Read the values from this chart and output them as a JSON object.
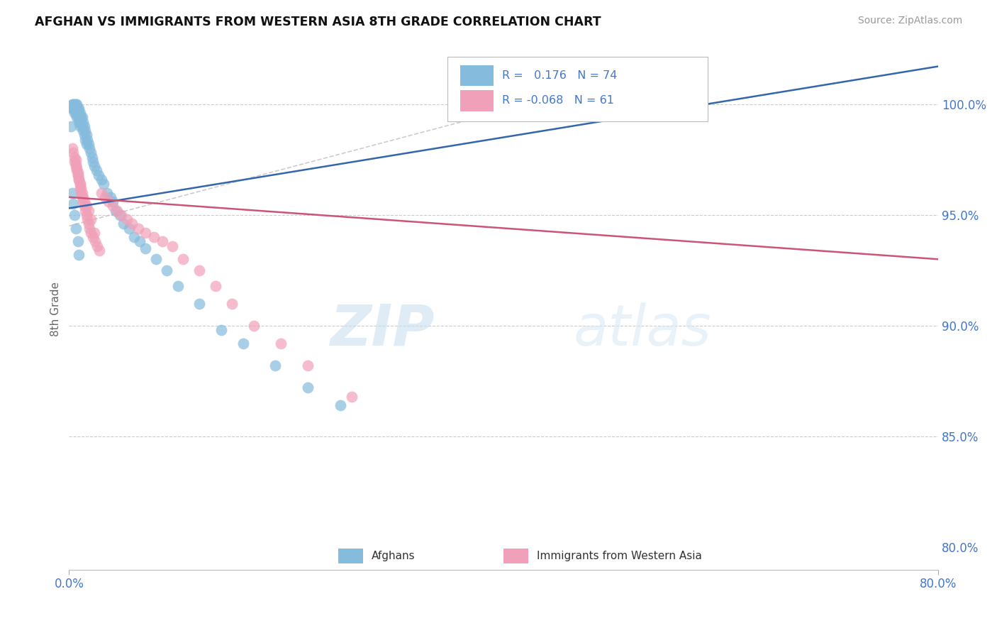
{
  "title": "AFGHAN VS IMMIGRANTS FROM WESTERN ASIA 8TH GRADE CORRELATION CHART",
  "source_text": "Source: ZipAtlas.com",
  "ylabel": "8th Grade",
  "xlim": [
    0.0,
    0.8
  ],
  "ylim": [
    0.79,
    1.025
  ],
  "blue_color": "#85bbdd",
  "pink_color": "#f0a0b8",
  "blue_line_color": "#3366aa",
  "pink_line_color": "#cc5577",
  "dashed_line_color": "#c0c0c0",
  "grid_color": "#cccccc",
  "axis_color": "#4477cc",
  "legend_R1": "0.176",
  "legend_N1": "74",
  "legend_R2": "-0.068",
  "legend_N2": "61",
  "legend_label1": "Afghans",
  "legend_label2": "Immigrants from Western Asia",
  "watermark_zip": "ZIP",
  "watermark_atlas": "atlas",
  "blue_scatter_x": [
    0.002,
    0.003,
    0.003,
    0.004,
    0.004,
    0.005,
    0.005,
    0.005,
    0.006,
    0.006,
    0.006,
    0.007,
    0.007,
    0.007,
    0.007,
    0.008,
    0.008,
    0.008,
    0.009,
    0.009,
    0.009,
    0.01,
    0.01,
    0.01,
    0.01,
    0.011,
    0.011,
    0.012,
    0.012,
    0.013,
    0.013,
    0.014,
    0.014,
    0.015,
    0.015,
    0.016,
    0.016,
    0.017,
    0.018,
    0.019,
    0.02,
    0.021,
    0.022,
    0.023,
    0.025,
    0.027,
    0.03,
    0.032,
    0.035,
    0.038,
    0.04,
    0.043,
    0.047,
    0.05,
    0.055,
    0.06,
    0.065,
    0.07,
    0.08,
    0.09,
    0.1,
    0.12,
    0.14,
    0.16,
    0.19,
    0.22,
    0.25,
    0.003,
    0.004,
    0.005,
    0.006,
    0.008,
    0.009,
    0.38
  ],
  "blue_scatter_y": [
    0.99,
    1.0,
    0.998,
    1.0,
    0.998,
    1.0,
    0.998,
    0.996,
    1.0,
    0.998,
    0.996,
    1.0,
    0.998,
    0.996,
    0.994,
    0.998,
    0.996,
    0.994,
    0.998,
    0.996,
    0.992,
    0.996,
    0.994,
    0.992,
    0.99,
    0.994,
    0.992,
    0.994,
    0.99,
    0.992,
    0.988,
    0.99,
    0.986,
    0.988,
    0.984,
    0.986,
    0.982,
    0.984,
    0.982,
    0.98,
    0.978,
    0.976,
    0.974,
    0.972,
    0.97,
    0.968,
    0.966,
    0.964,
    0.96,
    0.958,
    0.956,
    0.952,
    0.95,
    0.946,
    0.944,
    0.94,
    0.938,
    0.935,
    0.93,
    0.925,
    0.918,
    0.91,
    0.898,
    0.892,
    0.882,
    0.872,
    0.864,
    0.96,
    0.955,
    0.95,
    0.944,
    0.938,
    0.932,
    1.0
  ],
  "pink_scatter_x": [
    0.003,
    0.004,
    0.005,
    0.006,
    0.006,
    0.007,
    0.008,
    0.008,
    0.009,
    0.01,
    0.01,
    0.011,
    0.012,
    0.013,
    0.014,
    0.015,
    0.016,
    0.017,
    0.018,
    0.019,
    0.02,
    0.022,
    0.024,
    0.026,
    0.028,
    0.03,
    0.033,
    0.036,
    0.04,
    0.044,
    0.048,
    0.053,
    0.058,
    0.064,
    0.07,
    0.078,
    0.086,
    0.095,
    0.105,
    0.12,
    0.135,
    0.15,
    0.17,
    0.195,
    0.22,
    0.26,
    0.005,
    0.006,
    0.007,
    0.008,
    0.009,
    0.01,
    0.011,
    0.012,
    0.013,
    0.014,
    0.016,
    0.018,
    0.02,
    0.023,
    0.56
  ],
  "pink_scatter_y": [
    0.98,
    0.978,
    0.976,
    0.975,
    0.973,
    0.971,
    0.969,
    0.968,
    0.966,
    0.964,
    0.962,
    0.96,
    0.958,
    0.956,
    0.954,
    0.952,
    0.95,
    0.948,
    0.946,
    0.944,
    0.942,
    0.94,
    0.938,
    0.936,
    0.934,
    0.96,
    0.958,
    0.956,
    0.954,
    0.952,
    0.95,
    0.948,
    0.946,
    0.944,
    0.942,
    0.94,
    0.938,
    0.936,
    0.93,
    0.925,
    0.918,
    0.91,
    0.9,
    0.892,
    0.882,
    0.868,
    0.974,
    0.972,
    0.97,
    0.968,
    0.966,
    0.964,
    0.962,
    0.96,
    0.958,
    0.956,
    0.954,
    0.952,
    0.948,
    0.942,
    1.0
  ]
}
